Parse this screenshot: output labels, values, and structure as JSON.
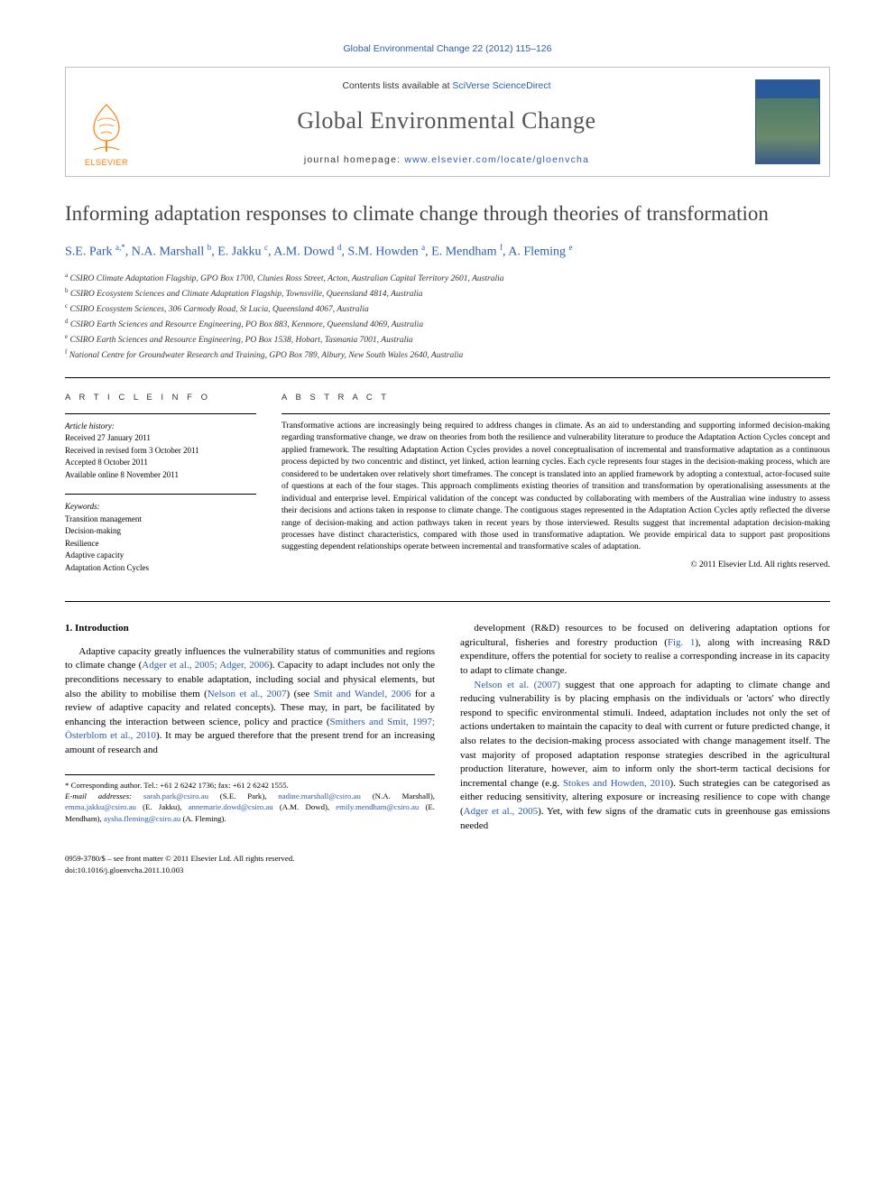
{
  "running_head": "Global Environmental Change 22 (2012) 115–126",
  "masthead": {
    "contents_prefix": "Contents lists available at ",
    "contents_link": "SciVerse ScienceDirect",
    "journal_name": "Global Environmental Change",
    "homepage_prefix": "journal homepage: ",
    "homepage_link": "www.elsevier.com/locate/gloenvcha",
    "publisher": "ELSEVIER"
  },
  "article": {
    "title": "Informing adaptation responses to climate change through theories of transformation",
    "authors_html": "S.E. Park <span class='sup'>a,</span><span class='sup star'>*</span>, N.A. Marshall <span class='sup'>b</span>, E. Jakku <span class='sup'>c</span>, A.M. Dowd <span class='sup'>d</span>, S.M. Howden <span class='sup'>a</span>, E. Mendham <span class='sup'>f</span>, A. Fleming <span class='sup'>e</span>",
    "affiliations": [
      {
        "sup": "a",
        "text": "CSIRO Climate Adaptation Flagship, GPO Box 1700, Clunies Ross Street, Acton, Australian Capital Territory 2601, Australia"
      },
      {
        "sup": "b",
        "text": "CSIRO Ecosystem Sciences and Climate Adaptation Flagship, Townsville, Queensland 4814, Australia"
      },
      {
        "sup": "c",
        "text": "CSIRO Ecosystem Sciences, 306 Carmody Road, St Lucia, Queensland 4067, Australia"
      },
      {
        "sup": "d",
        "text": "CSIRO Earth Sciences and Resource Engineering, PO Box 883, Kenmore, Queensland 4069, Australia"
      },
      {
        "sup": "e",
        "text": "CSIRO Earth Sciences and Resource Engineering, PO Box 1538, Hobart, Tasmania 7001, Australia"
      },
      {
        "sup": "f",
        "text": "National Centre for Groundwater Research and Training, GPO Box 789, Albury, New South Wales 2640, Australia"
      }
    ]
  },
  "article_info": {
    "heading": "A R T I C L E   I N F O",
    "history_label": "Article history:",
    "history": [
      "Received 27 January 2011",
      "Received in revised form 3 October 2011",
      "Accepted 8 October 2011",
      "Available online 8 November 2011"
    ],
    "keywords_label": "Keywords:",
    "keywords": [
      "Transition management",
      "Decision-making",
      "Resilience",
      "Adaptive capacity",
      "Adaptation Action Cycles"
    ]
  },
  "abstract": {
    "heading": "A B S T R A C T",
    "body": "Transformative actions are increasingly being required to address changes in climate. As an aid to understanding and supporting informed decision-making regarding transformative change, we draw on theories from both the resilience and vulnerability literature to produce the Adaptation Action Cycles concept and applied framework. The resulting Adaptation Action Cycles provides a novel conceptualisation of incremental and transformative adaptation as a continuous process depicted by two concentric and distinct, yet linked, action learning cycles. Each cycle represents four stages in the decision-making process, which are considered to be undertaken over relatively short timeframes. The concept is translated into an applied framework by adopting a contextual, actor-focused suite of questions at each of the four stages. This approach compliments existing theories of transition and transformation by operationalising assessments at the individual and enterprise level. Empirical validation of the concept was conducted by collaborating with members of the Australian wine industry to assess their decisions and actions taken in response to climate change. The contiguous stages represented in the Adaptation Action Cycles aptly reflected the diverse range of decision-making and action pathways taken in recent years by those interviewed. Results suggest that incremental adaptation decision-making processes have distinct characteristics, compared with those used in transformative adaptation. We provide empirical data to support past propositions suggesting dependent relationships operate between incremental and transformative scales of adaptation.",
    "copyright": "© 2011 Elsevier Ltd. All rights reserved."
  },
  "body": {
    "section1_heading": "1. Introduction",
    "para1": "Adaptive capacity greatly influences the vulnerability status of communities and regions to climate change (<span class='ref'>Adger et al., 2005; Adger, 2006</span>). Capacity to adapt includes not only the preconditions necessary to enable adaptation, including social and physical elements, but also the ability to mobilise them (<span class='ref'>Nelson et al., 2007</span>) (see <span class='ref'>Smit and Wandel, 2006</span> for a review of adaptive capacity and related concepts). These may, in part, be facilitated by enhancing the interaction between science, policy and practice (<span class='ref'>Smithers and Smit, 1997; Österblom et al., 2010</span>). It may be argued therefore that the present trend for an increasing amount of research and",
    "para2": "development (R&D) resources to be focused on delivering adaptation options for agricultural, fisheries and forestry production (<span class='ref'>Fig. 1</span>), along with increasing R&D expenditure, offers the potential for society to realise a corresponding increase in its capacity to adapt to climate change.",
    "para3": "<span class='ref'>Nelson et al. (2007)</span> suggest that one approach for adapting to climate change and reducing vulnerability is by placing emphasis on the individuals or 'actors' who directly respond to specific environmental stimuli. Indeed, adaptation includes not only the set of actions undertaken to maintain the capacity to deal with current or future predicted change, it also relates to the decision-making process associated with change management itself. The vast majority of proposed adaptation response strategies described in the agricultural production literature, however, aim to inform only the short-term tactical decisions for incremental change (e.g. <span class='ref'>Stokes and Howden, 2010</span>). Such strategies can be categorised as either reducing sensitivity, altering exposure or increasing resilience to cope with change (<span class='ref'>Adger et al., 2005</span>). Yet, with few signs of the dramatic cuts in greenhouse gas emissions needed"
  },
  "footnote": {
    "corr": "* Corresponding author. Tel.: +61 2 6242 1736; fax: +61 2 6242 1555.",
    "email_label": "E-mail addresses:",
    "emails": " <span class='mail'>sarah.park@csiro.au</span> (S.E. Park), <span class='mail'>nadine.marshall@csiro.au</span> (N.A. Marshall), <span class='mail'>emma.jakku@csiro.au</span> (E. Jakku), <span class='mail'>annemarie.dowd@csiro.au</span> (A.M. Dowd), <span class='mail'>emily.mendham@csiro.au</span> (E. Mendham), <span class='mail'>aysha.fleming@csiro.au</span> (A. Fleming)."
  },
  "footer": {
    "line1": "0959-3780/$ – see front matter © 2011 Elsevier Ltd. All rights reserved.",
    "line2": "doi:10.1016/j.gloenvcha.2011.10.003"
  },
  "colors": {
    "link": "#2a5caa",
    "elsevier_orange": "#ff7a00",
    "title_gray": "#444444",
    "journal_gray": "#555555"
  }
}
